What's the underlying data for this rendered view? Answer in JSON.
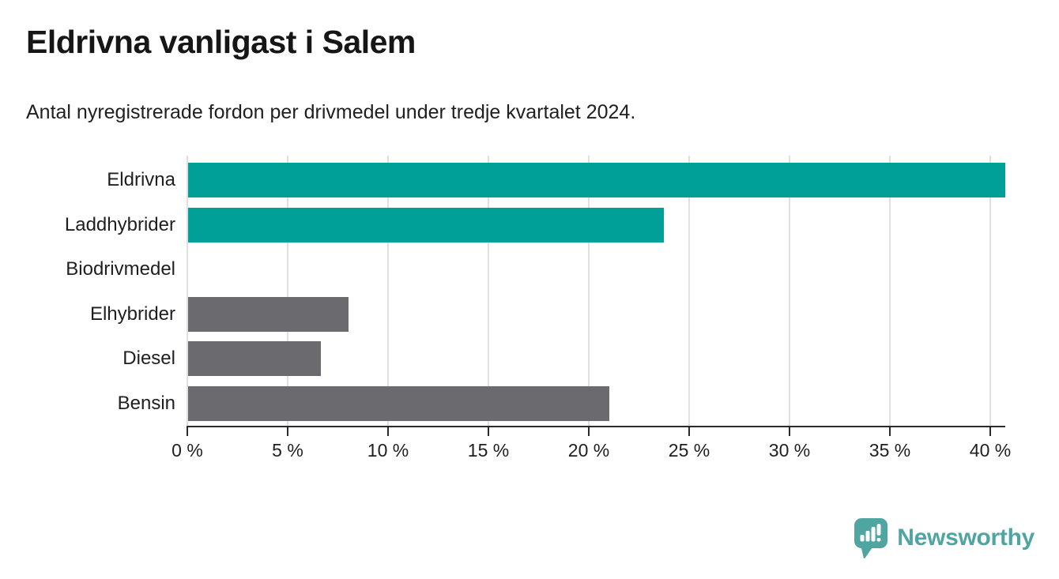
{
  "header": {
    "title": "Eldrivna vanligast i Salem",
    "subtitle": "Antal nyregistrerade fordon per drivmedel under tredje kvartalet 2024."
  },
  "chart_data": {
    "type": "bar",
    "orientation": "horizontal",
    "title": "Eldrivna vanligast i Salem",
    "subtitle": "Antal nyregistrerade fordon per drivmedel under tredje kvartalet 2024.",
    "categories": [
      "Eldrivna",
      "Laddhybrider",
      "Biodrivmedel",
      "Elhybrider",
      "Diesel",
      "Bensin"
    ],
    "values": [
      40.7,
      23.7,
      0,
      8.0,
      6.6,
      21.0
    ],
    "unit": "%",
    "bar_colors": [
      "#00A099",
      "#00A099",
      "#6A6A6F",
      "#6A6A6F",
      "#6A6A6F",
      "#6A6A6F"
    ],
    "highlight_color": "#00A099",
    "default_color": "#6A6A6F",
    "x_axis": {
      "min": 0,
      "max": 40,
      "ticks": [
        0,
        5,
        10,
        15,
        20,
        25,
        30,
        35,
        40
      ],
      "tick_labels": [
        "0 %",
        "5 %",
        "10 %",
        "15 %",
        "20 %",
        "25 %",
        "30 %",
        "35 %",
        "40 %"
      ]
    },
    "grid": true,
    "gridline_color": "#e0e0e0",
    "axis_color": "#2b2b2b",
    "legend": "none"
  },
  "footer": {
    "brand": "Newsworthy",
    "brand_color": "#4FA5A1",
    "logo_icon": "newsworthy-speech-bubble-bar-chart-icon"
  }
}
